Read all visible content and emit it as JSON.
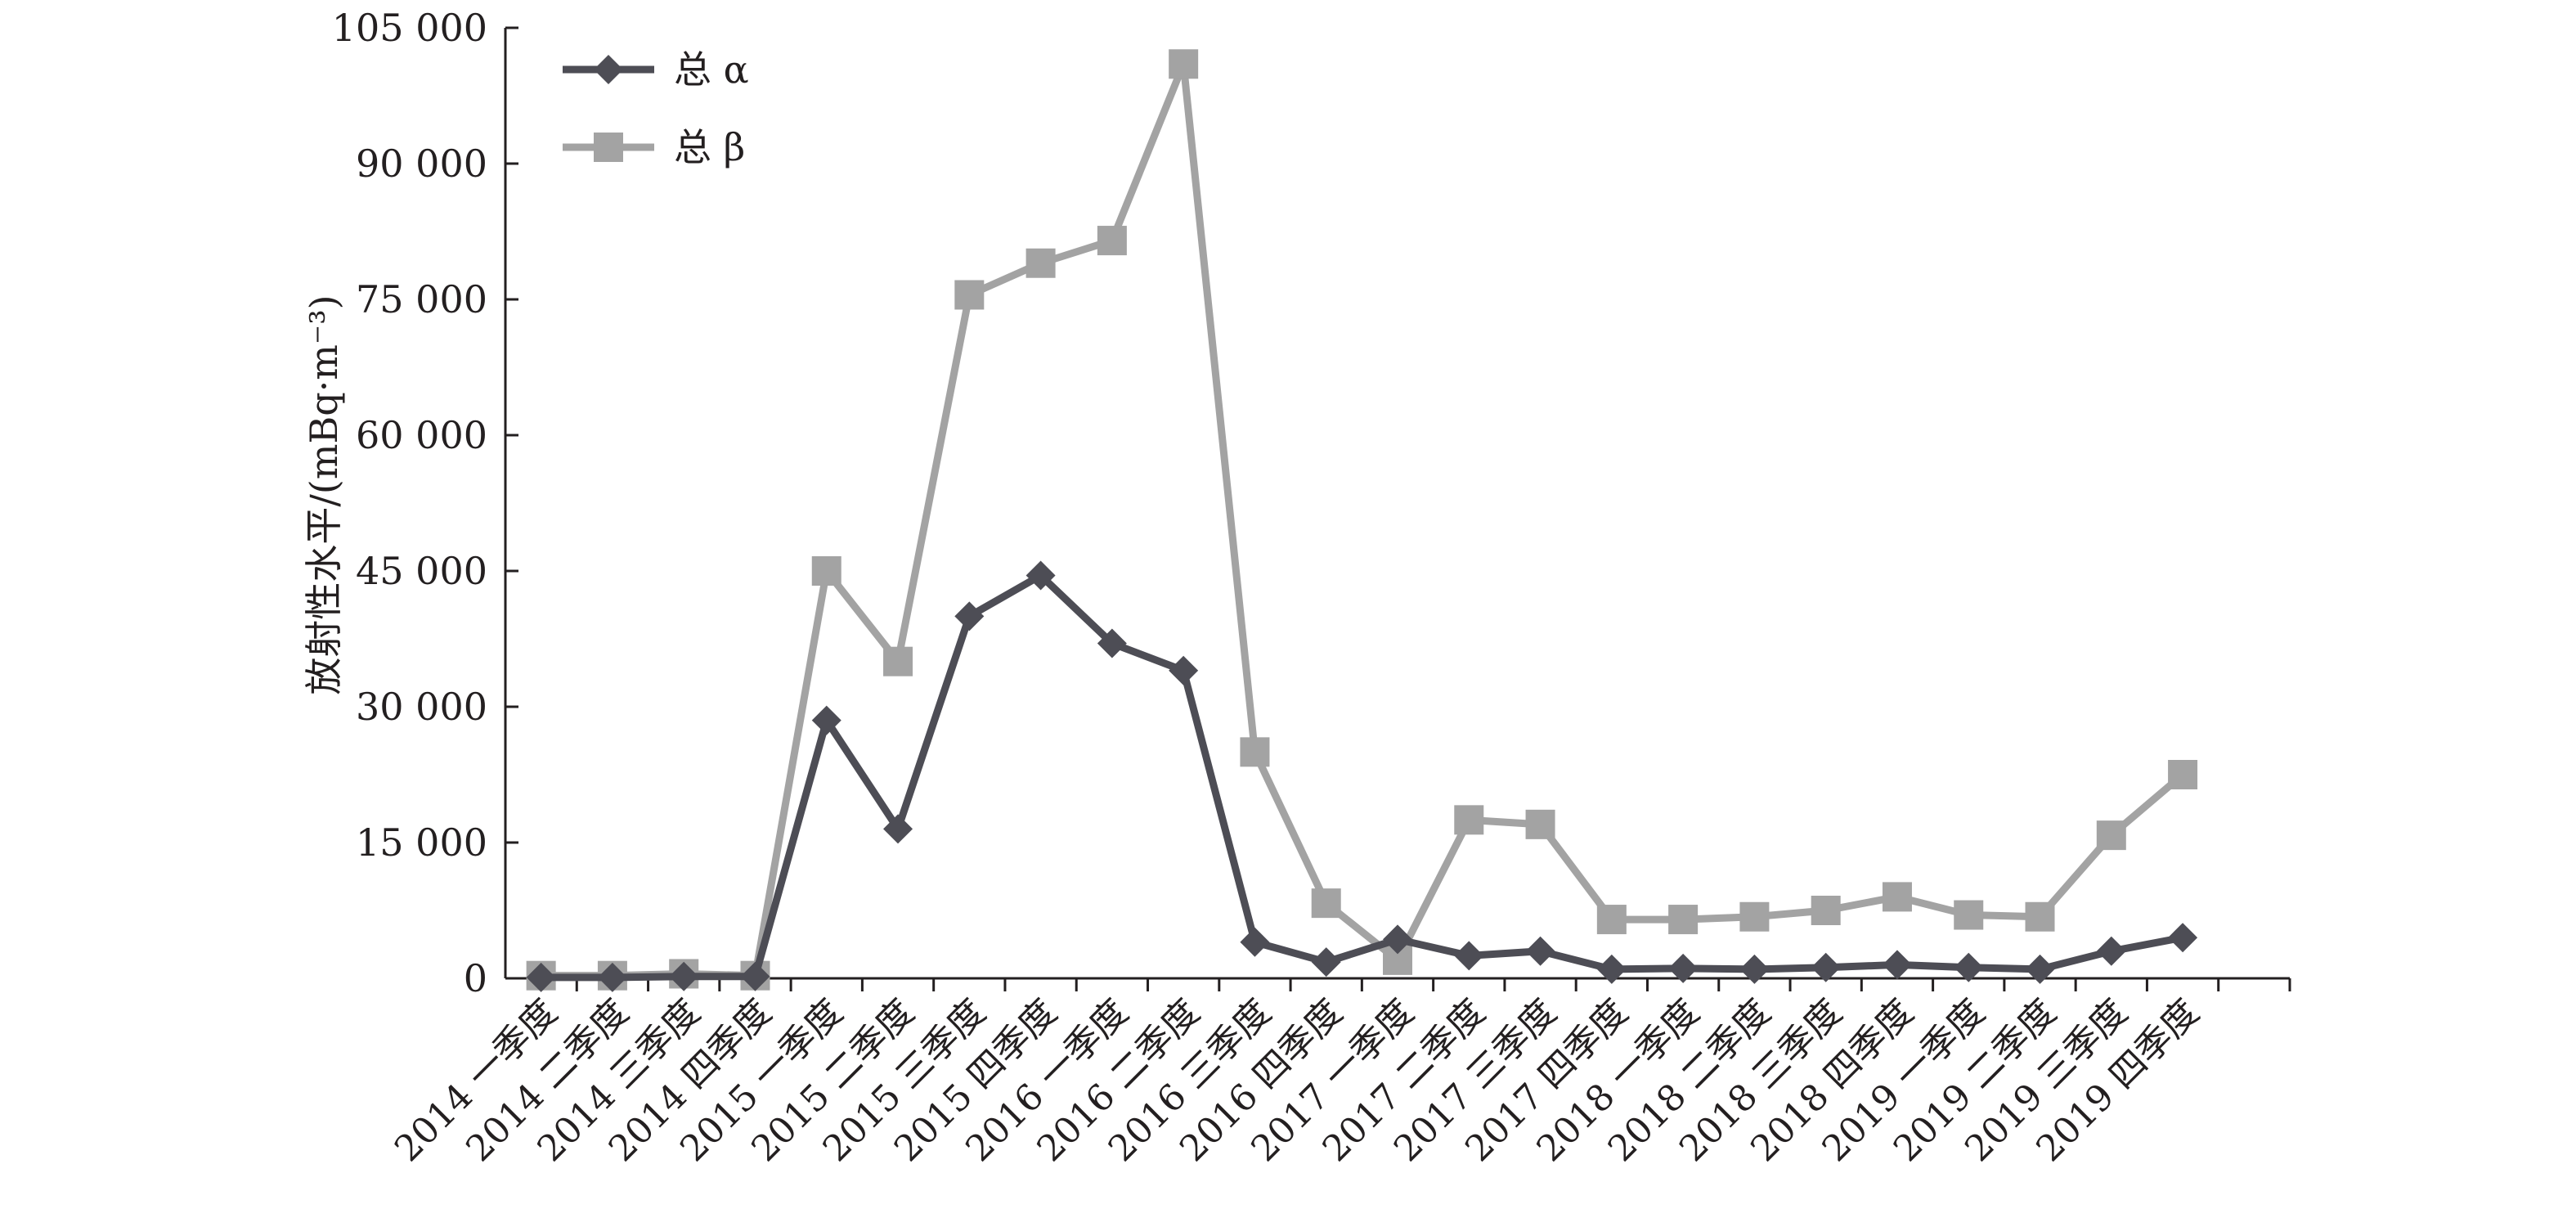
{
  "chart_data": {
    "type": "line",
    "ylabel": "放射性水平/(mBq·m⁻³)",
    "xlabel": "",
    "ylim": [
      0,
      105000
    ],
    "yticks": [
      0,
      15000,
      30000,
      45000,
      60000,
      75000,
      90000,
      105000
    ],
    "ytick_labels": [
      "0",
      "15 000",
      "30 000",
      "45 000",
      "60 000",
      "75 000",
      "90 000",
      "105 000"
    ],
    "grid": false,
    "legend_position": "top-left",
    "categories": [
      "2014 一季度",
      "2014 二季度",
      "2014 三季度",
      "2014 四季度",
      "2015 一季度",
      "2015 二季度",
      "2015 三季度",
      "2015 四季度",
      "2016 一季度",
      "2016 二季度",
      "2016 三季度",
      "2016 四季度",
      "2017 一季度",
      "2017 二季度",
      "2017 三季度",
      "2017 四季度",
      "2018 一季度",
      "2018 二季度",
      "2018 三季度",
      "2018 四季度",
      "2019 一季度",
      "2019 二季度",
      "2019 三季度",
      "2019 四季度"
    ],
    "series": [
      {
        "name": "总 α",
        "color": "#4d4d55",
        "marker": "diamond",
        "values": [
          100,
          100,
          200,
          200,
          28500,
          16500,
          40000,
          44500,
          37000,
          34000,
          4000,
          1800,
          4300,
          2500,
          3000,
          1000,
          1100,
          1000,
          1200,
          1500,
          1200,
          1000,
          3000,
          4500
        ]
      },
      {
        "name": "总 β",
        "color": "#a3a3a3",
        "marker": "square",
        "values": [
          300,
          300,
          500,
          300,
          45000,
          35000,
          75500,
          79000,
          81500,
          101000,
          25000,
          8300,
          2000,
          17500,
          17000,
          6500,
          6500,
          6800,
          7500,
          9000,
          7000,
          6800,
          15800,
          22500
        ]
      }
    ]
  }
}
